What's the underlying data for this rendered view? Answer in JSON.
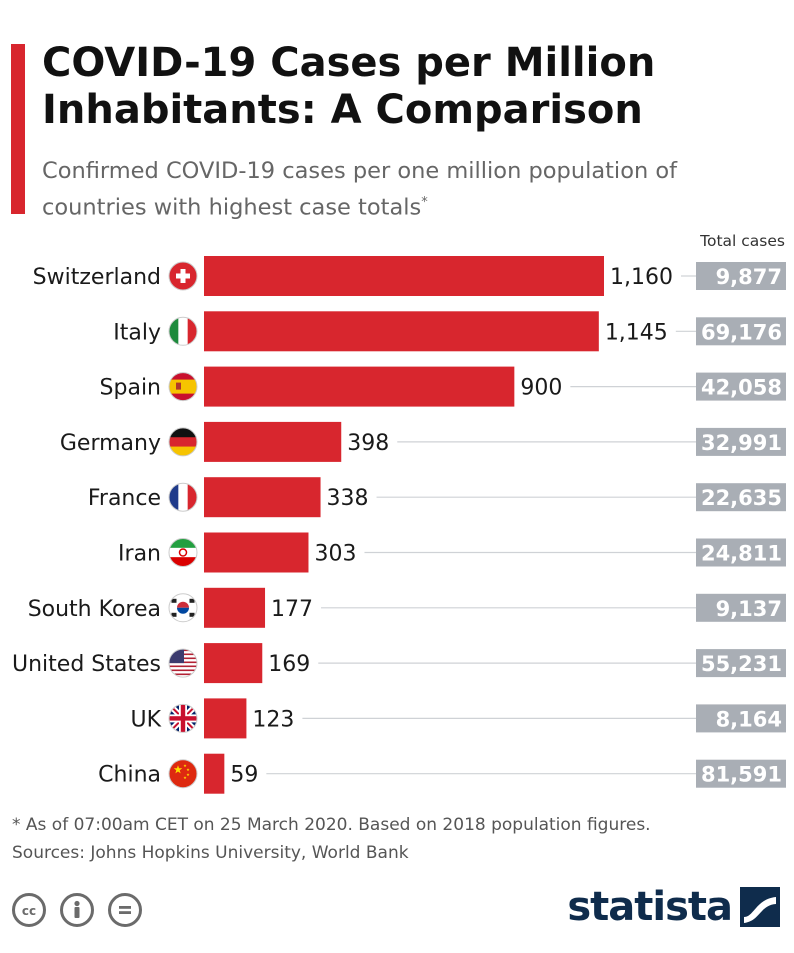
{
  "header": {
    "title": "COVID-19 Cases per Million Inhabitants: A Comparison",
    "subtitle": "Confirmed COVID-19 cases per one million population of countries with highest case totals",
    "subtitle_marker": "*"
  },
  "colors": {
    "accent": "#d8262e",
    "bar": "#d8262e",
    "total_box": "#a9aeb5",
    "logo": "#0f2c4c"
  },
  "chart_data": {
    "type": "bar",
    "orientation": "horizontal",
    "categories": [
      "Switzerland",
      "Italy",
      "Spain",
      "Germany",
      "France",
      "Iran",
      "South Korea",
      "United States",
      "UK",
      "China"
    ],
    "flags": [
      "switzerland-flag-icon",
      "italy-flag-icon",
      "spain-flag-icon",
      "germany-flag-icon",
      "france-flag-icon",
      "iran-flag-icon",
      "south-korea-flag-icon",
      "united-states-flag-icon",
      "uk-flag-icon",
      "china-flag-icon"
    ],
    "series": [
      {
        "values": [
          1160,
          1145,
          900,
          398,
          338,
          303,
          177,
          169,
          123,
          59
        ]
      }
    ],
    "value_labels": [
      "1,160",
      "1,145",
      "900",
      "398",
      "338",
      "303",
      "177",
      "169",
      "123",
      "59"
    ],
    "total_cases_header": "Total cases",
    "total_cases_labels": [
      "9,877",
      "69,176",
      "42,058",
      "32,991",
      "22,635",
      "24,811",
      "9,137",
      "55,231",
      "8,164",
      "81,591"
    ],
    "total_cases": [
      9877,
      69176,
      42058,
      32991,
      22635,
      24811,
      9137,
      55231,
      8164,
      81591
    ],
    "xlim": [
      0,
      1160
    ],
    "grid": false
  },
  "footer": {
    "footnote": "* As of 07:00am CET on 25 March 2020. Based on 2018 population figures.",
    "sources": "Sources: Johns Hopkins University, World Bank",
    "license_icons": [
      "creative-commons-icon",
      "attribution-icon",
      "no-derivatives-icon"
    ],
    "logo_text": "statista"
  }
}
